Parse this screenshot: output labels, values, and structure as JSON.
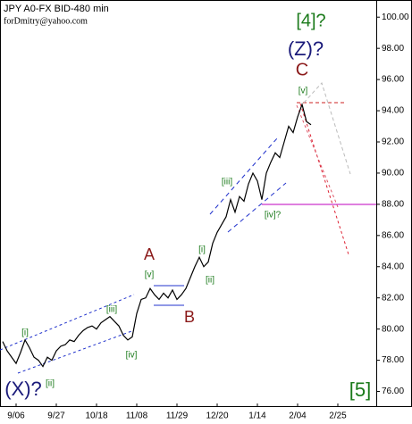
{
  "chart_data": {
    "type": "line",
    "title": "JPY A0-FX BID-480 min",
    "subtitle": "forDmitry@yahoo.com",
    "categories": [
      null,
      null,
      null,
      "9/06",
      null,
      null,
      null,
      null,
      null,
      null,
      null,
      null,
      "9/27",
      null,
      null,
      null,
      null,
      null,
      null,
      null,
      null,
      "10/18",
      null,
      null,
      null,
      null,
      null,
      null,
      null,
      null,
      "11/08",
      null,
      null,
      null,
      null,
      null,
      null,
      null,
      null,
      "11/29",
      null,
      null,
      null,
      null,
      null,
      null,
      null,
      null,
      "12/20",
      null,
      null,
      null,
      null,
      null,
      null,
      null,
      null,
      "1/14",
      null,
      null,
      null,
      null,
      null,
      null,
      null,
      null,
      "2/04",
      null,
      null,
      null,
      null,
      null,
      null,
      null,
      null,
      "2/25",
      null,
      null,
      null,
      null,
      null,
      null,
      null,
      null
    ],
    "series": [
      {
        "name": "JPY A0-FX",
        "color": "#000000",
        "values": [
          79.2,
          78.6,
          78.2,
          77.8,
          78.5,
          79.3,
          78.8,
          78.2,
          78.0,
          77.6,
          78.2,
          78.0,
          78.6,
          78.9,
          79.0,
          79.3,
          79.2,
          79.6,
          79.9,
          80.1,
          80.2,
          80.0,
          80.4,
          80.6,
          80.8,
          80.5,
          80.2,
          79.6,
          79.3,
          79.5,
          81.0,
          81.9,
          82.0,
          82.6,
          82.2,
          81.9,
          82.3,
          82.0,
          82.5,
          81.9,
          82.2,
          82.6,
          83.3,
          84.0,
          84.6,
          84.0,
          84.3,
          85.5,
          86.2,
          86.7,
          87.2,
          88.3,
          87.5,
          88.5,
          88.2,
          89.3,
          90.0,
          89.5,
          88.3,
          90.0,
          90.7,
          91.3,
          91.0,
          92.0,
          93.0,
          92.6,
          93.6,
          94.4,
          93.3,
          93.1,
          null,
          null,
          null,
          null,
          null,
          null,
          null,
          null,
          null,
          null,
          null,
          null,
          null,
          null
        ]
      }
    ],
    "ylim": [
      75,
      101.1
    ],
    "yticks": [
      {
        "value": 76,
        "label": "76.00"
      },
      {
        "value": 78,
        "label": "78.00"
      },
      {
        "value": 80,
        "label": "80.00"
      },
      {
        "value": 82,
        "label": "82.00"
      },
      {
        "value": 84,
        "label": "84.00"
      },
      {
        "value": 86,
        "label": "86.00"
      },
      {
        "value": 88,
        "label": "88.00"
      },
      {
        "value": 90,
        "label": "90.00"
      },
      {
        "value": 92,
        "label": "92.00"
      },
      {
        "value": 94,
        "label": "94.00"
      },
      {
        "value": 96,
        "label": "96.00"
      },
      {
        "value": 98,
        "label": "98.00"
      },
      {
        "value": 100,
        "label": "100.00"
      }
    ],
    "annotations": [
      "[4]?",
      "(Z)?",
      "C",
      "[v]",
      "A",
      "[v]",
      "B",
      "[i]",
      "[ii]",
      "[iii]",
      "[iv]?",
      "[i]",
      "[ii]",
      "[iii]",
      "[iv]",
      "(X)?",
      "[5]"
    ]
  }
}
